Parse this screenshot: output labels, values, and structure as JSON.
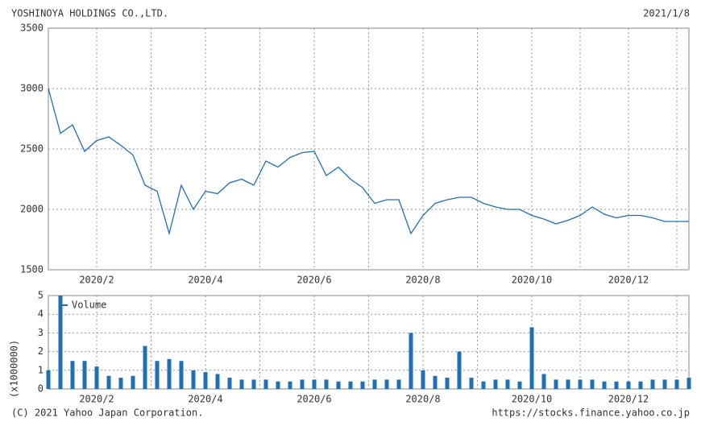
{
  "chart_data": [
    {
      "type": "line",
      "title": "YOSHINOYA HOLDINGS CO.,LTD.",
      "date": "2021/1/8",
      "categories": [
        null,
        null,
        null,
        null,
        "2020/2",
        null,
        null,
        null,
        null,
        null,
        null,
        null,
        null,
        "2020/4",
        null,
        null,
        null,
        null,
        null,
        null,
        null,
        null,
        "2020/6",
        null,
        null,
        null,
        null,
        null,
        null,
        null,
        null,
        "2020/8",
        null,
        null,
        null,
        null,
        null,
        null,
        null,
        null,
        "2020/10",
        null,
        null,
        null,
        null,
        null,
        null,
        null,
        "2020/12",
        null,
        null,
        null,
        null,
        null
      ],
      "values": [
        3000,
        2630,
        2700,
        2480,
        2570,
        2600,
        2530,
        2450,
        2200,
        2150,
        1800,
        2200,
        2000,
        2150,
        2130,
        2220,
        2250,
        2200,
        2400,
        2350,
        2430,
        2470,
        2480,
        2280,
        2350,
        2250,
        2180,
        2050,
        2080,
        2080,
        1800,
        1950,
        2050,
        2080,
        2100,
        2100,
        2050,
        2020,
        2000,
        2000,
        1950,
        1920,
        1880,
        1910,
        1950,
        2020,
        1960,
        1930,
        1950,
        1950,
        1930,
        1900,
        1900,
        1900
      ],
      "color": "#1f6fb5",
      "ylim": [
        1500,
        3500
      ],
      "yticks": [
        1500,
        2000,
        2500,
        3000,
        3500
      ],
      "grid": true
    },
    {
      "type": "bar",
      "y_label": "(x1000000)",
      "categories": [
        null,
        null,
        null,
        null,
        "2020/2",
        null,
        null,
        null,
        null,
        null,
        null,
        null,
        null,
        "2020/4",
        null,
        null,
        null,
        null,
        null,
        null,
        null,
        null,
        "2020/6",
        null,
        null,
        null,
        null,
        null,
        null,
        null,
        null,
        "2020/8",
        null,
        null,
        null,
        null,
        null,
        null,
        null,
        null,
        "2020/10",
        null,
        null,
        null,
        null,
        null,
        null,
        null,
        "2020/12",
        null,
        null,
        null,
        null,
        null
      ],
      "series": [
        {
          "name": "Volume",
          "color": "#1f6fb5",
          "values": [
            1.0,
            5,
            1.5,
            1.5,
            1.2,
            0.7,
            0.6,
            0.7,
            2.3,
            1.5,
            1.6,
            1.5,
            1.0,
            0.9,
            0.8,
            0.6,
            0.5,
            0.5,
            0.5,
            0.4,
            0.4,
            0.5,
            0.5,
            0.5,
            0.4,
            0.4,
            0.4,
            0.5,
            0.5,
            0.5,
            3.0,
            1.0,
            0.7,
            0.6,
            2.0,
            0.6,
            0.4,
            0.5,
            0.5,
            0.4,
            3.3,
            0.8,
            0.5,
            0.5,
            0.5,
            0.5,
            0.4,
            0.4,
            0.4,
            0.4,
            0.5,
            0.5,
            0.5,
            0.6
          ]
        }
      ],
      "ylim": [
        0,
        5
      ],
      "yticks": [
        0,
        1,
        2,
        3,
        4,
        5
      ],
      "grid": true,
      "legend": "top-left"
    }
  ],
  "footer": {
    "copyright": "(C) 2021 Yahoo Japan Corporation.",
    "url": "https://stocks.finance.yahoo.co.jp"
  }
}
